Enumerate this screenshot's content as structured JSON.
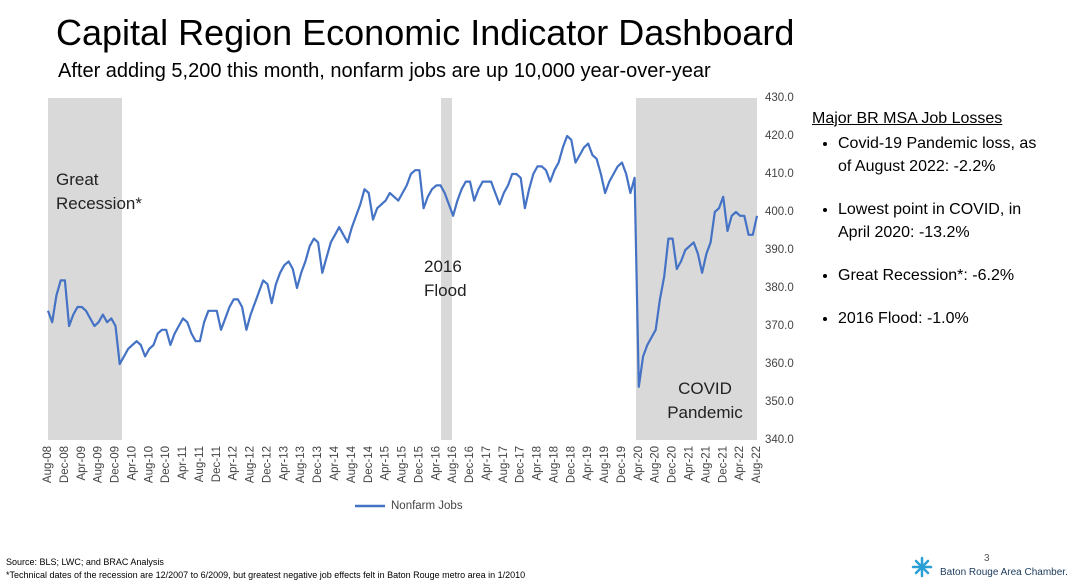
{
  "chart_data": {
    "type": "line",
    "title": "Capital Region Economic Indicator Dashboard",
    "subtitle": "After adding 5,200 this month, nonfarm jobs are up 10,000 year-over-year",
    "categories": [
      "Aug-08",
      null,
      null,
      null,
      "Dec-08",
      null,
      null,
      null,
      "Apr-09",
      null,
      null,
      null,
      "Aug-09",
      null,
      null,
      null,
      "Dec-09",
      null,
      null,
      null,
      "Apr-10",
      null,
      null,
      null,
      "Aug-10",
      null,
      null,
      null,
      "Dec-10",
      null,
      null,
      null,
      "Apr-11",
      null,
      null,
      null,
      "Aug-11",
      null,
      null,
      null,
      "Dec-11",
      null,
      null,
      null,
      "Apr-12",
      null,
      null,
      null,
      "Aug-12",
      null,
      null,
      null,
      "Dec-12",
      null,
      null,
      null,
      "Apr-13",
      null,
      null,
      null,
      "Aug-13",
      null,
      null,
      null,
      "Dec-13",
      null,
      null,
      null,
      "Apr-14",
      null,
      null,
      null,
      "Aug-14",
      null,
      null,
      null,
      "Dec-14",
      null,
      null,
      null,
      "Apr-15",
      null,
      null,
      null,
      "Aug-15",
      null,
      null,
      null,
      "Dec-15",
      null,
      null,
      null,
      "Apr-16",
      null,
      null,
      null,
      "Aug-16",
      null,
      null,
      null,
      "Dec-16",
      null,
      null,
      null,
      "Apr-17",
      null,
      null,
      null,
      "Aug-17",
      null,
      null,
      null,
      "Dec-17",
      null,
      null,
      null,
      "Apr-18",
      null,
      null,
      null,
      "Aug-18",
      null,
      null,
      null,
      "Dec-18",
      null,
      null,
      null,
      "Apr-19",
      null,
      null,
      null,
      "Aug-19",
      null,
      null,
      null,
      "Dec-19",
      null,
      null,
      null,
      "Apr-20",
      null,
      null,
      null,
      "Aug-20",
      null,
      null,
      null,
      "Dec-20",
      null,
      null,
      null,
      "Apr-21",
      null,
      null,
      null,
      "Aug-21",
      null,
      null,
      null,
      "Dec-21",
      null,
      null,
      null,
      "Apr-22",
      null,
      null,
      null,
      "Aug-22"
    ],
    "series": [
      {
        "name": "Nonfarm Jobs",
        "color": "#4472c4",
        "values": [
          374,
          371,
          378,
          382,
          382,
          370,
          373,
          375,
          375,
          374,
          372,
          370,
          371,
          373,
          371,
          372,
          370,
          360,
          362,
          364,
          365,
          366,
          365,
          362,
          364,
          365,
          368,
          369,
          369,
          365,
          368,
          370,
          372,
          371,
          368,
          366,
          366,
          371,
          374,
          374,
          374,
          369,
          372,
          375,
          377,
          377,
          375,
          369,
          373,
          376,
          379,
          382,
          381,
          376,
          381,
          384,
          386,
          387,
          385,
          380,
          384,
          387,
          391,
          393,
          392,
          384,
          388,
          392,
          394,
          396,
          394,
          392,
          396,
          399,
          402,
          406,
          405,
          398,
          401,
          402,
          403,
          405,
          404,
          403,
          405,
          407,
          410,
          411,
          411,
          401,
          404,
          406,
          407,
          407,
          405,
          402,
          399,
          403,
          406,
          408,
          408,
          403,
          406,
          408,
          408,
          408,
          405,
          402,
          405,
          407,
          410,
          410,
          409,
          401,
          406,
          410,
          412,
          412,
          411,
          408,
          411,
          413,
          417,
          420,
          419,
          413,
          415,
          417,
          418,
          415,
          414,
          410,
          405,
          408,
          410,
          412,
          413,
          410,
          405,
          409,
          354,
          362,
          365,
          367,
          369,
          377,
          383,
          393,
          393,
          385,
          387,
          390,
          391,
          392,
          389,
          384,
          389,
          392,
          400,
          401,
          404,
          395,
          399,
          400,
          399,
          399,
          394,
          394,
          399
        ]
      }
    ],
    "ylim": [
      340,
      430
    ],
    "yticks": [
      {
        "value": 340,
        "label": "340.0"
      },
      {
        "value": 350,
        "label": "350.0"
      },
      {
        "value": 360,
        "label": "360.0"
      },
      {
        "value": 370,
        "label": "370.0"
      },
      {
        "value": 380,
        "label": "380.0"
      },
      {
        "value": 390,
        "label": "390.0"
      },
      {
        "value": 400,
        "label": "400.0"
      },
      {
        "value": 410,
        "label": "410.0"
      },
      {
        "value": 420,
        "label": "420.0"
      },
      {
        "value": 430,
        "label": "430.0"
      }
    ],
    "yaxis_side": "right",
    "grid": false,
    "legend": "bottom",
    "annotations": [
      "Great Recession*",
      "2016 Flood",
      "COVID Pandemic"
    ]
  },
  "side_panel": {
    "title": "Major BR MSA Job Losses",
    "items": [
      "Covid-19 Pandemic loss, as of August 2022: -2.2%",
      "Lowest point in COVID, in April 2020: -13.2%",
      "Great Recession*: -6.2%",
      "2016 Flood: -1.0%"
    ]
  },
  "footer": {
    "source": "Source: BLS; LWC; and BRAC Analysis",
    "note": "*Technical dates of the recession are 12/2007 to 6/2009, but greatest negative job effects felt in Baton Rouge metro area in 1/2010",
    "page": "3",
    "logo": "Baton Rouge Area Chamber."
  }
}
